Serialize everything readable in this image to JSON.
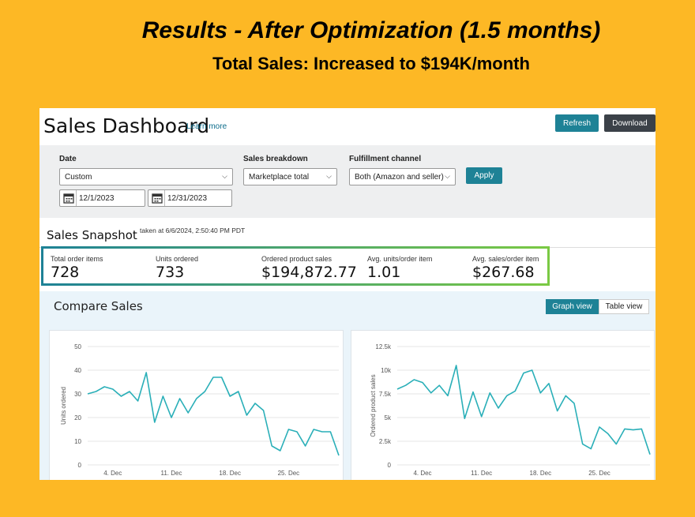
{
  "headline": {
    "title": "Results - After Optimization (1.5 months)",
    "subtitle": "Total Sales: Increased to $194K/month"
  },
  "dashboard": {
    "title": "Sales Dashboard",
    "learn_more": "Learn more",
    "refresh_label": "Refresh",
    "download_label": "Download"
  },
  "filters": {
    "date_label": "Date",
    "date_value": "Custom",
    "start_date": "12/1/2023",
    "end_date": "12/31/2023",
    "breakdown_label": "Sales breakdown",
    "breakdown_value": "Marketplace total",
    "channel_label": "Fulfillment channel",
    "channel_value": "Both (Amazon and seller)",
    "apply_label": "Apply"
  },
  "snapshot": {
    "title": "Sales Snapshot",
    "taken_at": "taken at 6/6/2024, 2:50:40 PM PDT",
    "metrics": [
      {
        "label": "Total order items",
        "value": "728"
      },
      {
        "label": "Units ordered",
        "value": "733"
      },
      {
        "label": "Ordered product sales",
        "value": "$194,872.77"
      },
      {
        "label": "Avg. units/order item",
        "value": "1.01"
      },
      {
        "label": "Avg. sales/order item",
        "value": "$267.68"
      }
    ],
    "border_colors": [
      "#1e8296",
      "#7ac943"
    ]
  },
  "compare": {
    "title": "Compare Sales",
    "graph_view_label": "Graph view",
    "table_view_label": "Table view"
  },
  "chart_data": [
    {
      "type": "line",
      "title": "",
      "ylabel": "Units ordered",
      "xlabel": "",
      "ylim": [
        0,
        50
      ],
      "yticks": [
        0,
        10,
        20,
        30,
        40,
        50
      ],
      "yticklabels": [
        "0",
        "10",
        "20",
        "30",
        "40",
        "50"
      ],
      "xticks": [
        {
          "day": 4,
          "label": "4. Dec"
        },
        {
          "day": 11,
          "label": "11. Dec"
        },
        {
          "day": 18,
          "label": "18. Dec"
        },
        {
          "day": 25,
          "label": "25. Dec"
        }
      ],
      "xlim": [
        1,
        31
      ],
      "color": "#2aafb8",
      "series": [
        {
          "x": [
            1,
            2,
            3,
            4,
            5,
            6,
            7,
            8,
            9,
            10,
            11,
            12,
            13,
            14,
            15,
            16,
            17,
            18,
            19,
            20,
            21,
            22,
            23,
            24,
            25,
            26,
            27,
            28,
            29,
            30,
            31
          ],
          "values": [
            30,
            31,
            33,
            32,
            29,
            31,
            27,
            39,
            18,
            29,
            20,
            28,
            22,
            28,
            31,
            37,
            37,
            29,
            31,
            21,
            26,
            23,
            8,
            6,
            15,
            14,
            8,
            15,
            14,
            14,
            4
          ]
        }
      ]
    },
    {
      "type": "line",
      "title": "",
      "ylabel": "Ordered product sales",
      "xlabel": "",
      "ylim": [
        0,
        12500
      ],
      "yticks": [
        0,
        2500,
        5000,
        7500,
        10000,
        12500
      ],
      "yticklabels": [
        "0",
        "2.5k",
        "5k",
        "7.5k",
        "10k",
        "12.5k"
      ],
      "xticks": [
        {
          "day": 4,
          "label": "4. Dec"
        },
        {
          "day": 11,
          "label": "11. Dec"
        },
        {
          "day": 18,
          "label": "18. Dec"
        },
        {
          "day": 25,
          "label": "25. Dec"
        }
      ],
      "xlim": [
        1,
        31
      ],
      "color": "#2aafb8",
      "series": [
        {
          "x": [
            1,
            2,
            3,
            4,
            5,
            6,
            7,
            8,
            9,
            10,
            11,
            12,
            13,
            14,
            15,
            16,
            17,
            18,
            19,
            20,
            21,
            22,
            23,
            24,
            25,
            26,
            27,
            28,
            29,
            30,
            31
          ],
          "values": [
            8000,
            8400,
            9000,
            8700,
            7600,
            8400,
            7300,
            10500,
            4900,
            7700,
            5100,
            7600,
            6000,
            7300,
            7800,
            9700,
            10000,
            7600,
            8600,
            5700,
            7300,
            6500,
            2200,
            1700,
            4000,
            3300,
            2200,
            3800,
            3700,
            3800,
            1100
          ]
        }
      ]
    }
  ]
}
